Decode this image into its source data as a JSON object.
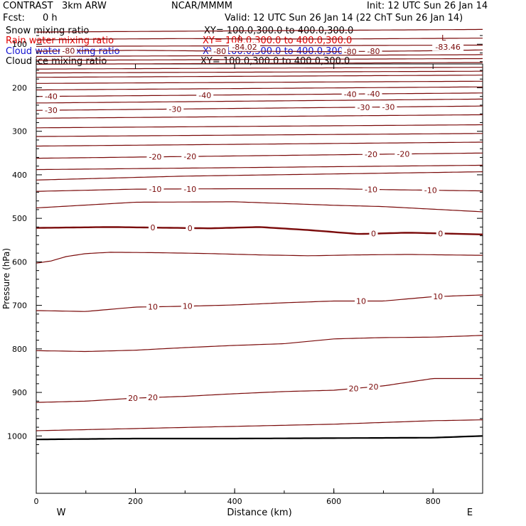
{
  "header": {
    "model": "CONTRAST   3km ARW",
    "org": "NCAR/MMMM",
    "init": "Init: 12 UTC Sun 26 Jan 14",
    "fcst_label": "Fcst:",
    "fcst_value": "0 h",
    "valid": "Valid: 12 UTC Sun 26 Jan 14 (22 ChT Sun 26 Jan 14)"
  },
  "fields": [
    {
      "name": "Snow mixing ratio",
      "xy": "XY= 100.0,300.0 to 400.0,300.0",
      "color": "#000000"
    },
    {
      "name": "Rain water mixing ratio",
      "xy": "XY= 100.0,300.0 to 400.0,300.0",
      "color": "#e00000"
    },
    {
      "name": "Cloud water mixing ratio",
      "xy": "XY= 100.0,300.0 to 400.0,300.0",
      "color": "#1010d0"
    },
    {
      "name": "Cloud ice mixing ratio",
      "xy": "XY= 100.0,300.0 to 400.0,300.0",
      "color": "#000000"
    }
  ],
  "chart_data": {
    "type": "line",
    "title": "",
    "xlabel": "Distance (km)",
    "ylabel": "Pressure (hPa)",
    "xlim": [
      0,
      900
    ],
    "ylim": [
      1050,
      70
    ],
    "x_ticks": [
      0,
      200,
      400,
      600,
      800
    ],
    "y_ticks": [
      100,
      200,
      300,
      400,
      500,
      600,
      700,
      800,
      900,
      1000
    ],
    "direction_labels": {
      "left": "W",
      "right": "E"
    },
    "contour_color": "#7a0a0a",
    "ground_line_color": "#000000",
    "minima": [
      {
        "marker": "L",
        "label": "-84.02",
        "x": 420,
        "p": 96
      },
      {
        "marker": "L",
        "label": "-83.46",
        "x": 830,
        "p": 96
      }
    ],
    "series": [
      {
        "x": [
          0,
          900
        ],
        "y": [
          72,
          66
        ]
      },
      {
        "x": [
          0,
          150,
          300,
          450,
          600,
          750,
          900
        ],
        "y": [
          90,
          88,
          87,
          88,
          88,
          87,
          86
        ]
      },
      {
        "x": [
          0,
          900
        ],
        "y": [
          105,
          102
        ]
      },
      {
        "x": [
          0,
          200,
          400,
          600,
          800,
          900
        ],
        "y": [
          116,
          114,
          116,
          117,
          115,
          113
        ],
        "labels": [
          {
            "text": "-80",
            "x": 65
          },
          {
            "text": "-80",
            "x": 370
          },
          {
            "text": "-80",
            "x": 633
          },
          {
            "text": "-80",
            "x": 680
          }
        ]
      },
      {
        "x": [
          0,
          900
        ],
        "y": [
          128,
          124
        ]
      },
      {
        "x": [
          0,
          900
        ],
        "y": [
          137,
          133
        ]
      },
      {
        "x": [
          0,
          900
        ],
        "y": [
          146,
          142
        ]
      },
      {
        "x": [
          0,
          900
        ],
        "y": [
          157,
          153
        ]
      },
      {
        "x": [
          0,
          900
        ],
        "y": [
          166,
          162
        ]
      },
      {
        "x": [
          0,
          900
        ],
        "y": [
          176,
          171
        ]
      },
      {
        "x": [
          0,
          900
        ],
        "y": [
          190,
          185
        ]
      },
      {
        "x": [
          0,
          900
        ],
        "y": [
          205,
          198
        ]
      },
      {
        "x": [
          0,
          900
        ],
        "y": [
          220,
          212
        ],
        "labels": [
          {
            "text": "-40",
            "x": 30
          },
          {
            "text": "-40",
            "x": 340
          },
          {
            "text": "-40",
            "x": 633
          },
          {
            "text": "-40",
            "x": 680
          }
        ]
      },
      {
        "x": [
          0,
          900
        ],
        "y": [
          235,
          226
        ]
      },
      {
        "x": [
          0,
          900
        ],
        "y": [
          252,
          242
        ],
        "labels": [
          {
            "text": "-30",
            "x": 30
          },
          {
            "text": "-30",
            "x": 280
          },
          {
            "text": "-30",
            "x": 660
          },
          {
            "text": "-30",
            "x": 710
          }
        ]
      },
      {
        "x": [
          0,
          900
        ],
        "y": [
          270,
          262
        ]
      },
      {
        "x": [
          0,
          900
        ],
        "y": [
          292,
          285
        ]
      },
      {
        "x": [
          0,
          900
        ],
        "y": [
          312,
          305
        ]
      },
      {
        "x": [
          0,
          900
        ],
        "y": [
          334,
          325
        ]
      },
      {
        "x": [
          0,
          900
        ],
        "y": [
          362,
          350
        ],
        "labels": [
          {
            "text": "-20",
            "x": 240
          },
          {
            "text": "-20",
            "x": 310
          },
          {
            "text": "-20",
            "x": 675
          },
          {
            "text": "-20",
            "x": 740
          }
        ]
      },
      {
        "x": [
          0,
          900
        ],
        "y": [
          388,
          378
        ]
      },
      {
        "x": [
          0,
          300,
          600,
          900
        ],
        "y": [
          412,
          403,
          398,
          393
        ]
      },
      {
        "x": [
          0,
          200,
          400,
          600,
          700,
          900
        ],
        "y": [
          438,
          433,
          432,
          432,
          434,
          437
        ],
        "labels": [
          {
            "text": "-10",
            "x": 240
          },
          {
            "text": "-10",
            "x": 310
          },
          {
            "text": "-10",
            "x": 675
          },
          {
            "text": "-10",
            "x": 795
          }
        ]
      },
      {
        "x": [
          0,
          200,
          400,
          600,
          700,
          900
        ],
        "y": [
          476,
          463,
          462,
          470,
          473,
          485
        ]
      },
      {
        "x": [
          0,
          150,
          350,
          450,
          550,
          650,
          750,
          900
        ],
        "y": [
          522,
          520,
          523,
          520,
          527,
          536,
          533,
          537
        ],
        "labels": [
          {
            "text": "0",
            "x": 235
          },
          {
            "text": "0",
            "x": 310
          },
          {
            "text": "0",
            "x": 680
          },
          {
            "text": "0",
            "x": 815
          }
        ],
        "bold": true
      },
      {
        "x": [
          0,
          30,
          60,
          100,
          150,
          250,
          350,
          450,
          550,
          650,
          750,
          900
        ],
        "y": [
          603,
          598,
          588,
          581,
          578,
          579,
          581,
          584,
          586,
          584,
          583,
          585
        ]
      },
      {
        "x": [
          0,
          100,
          200,
          300,
          400,
          500,
          600,
          700,
          800,
          900
        ],
        "y": [
          712,
          714,
          704,
          702,
          699,
          694,
          690,
          690,
          680,
          676
        ],
        "labels": [
          {
            "text": "10",
            "x": 235
          },
          {
            "text": "10",
            "x": 305
          },
          {
            "text": "10",
            "x": 655
          },
          {
            "text": "10",
            "x": 810
          }
        ]
      },
      {
        "x": [
          0,
          100,
          200,
          300,
          400,
          500,
          600,
          700,
          800,
          900
        ],
        "y": [
          804,
          806,
          803,
          797,
          792,
          788,
          777,
          774,
          773,
          769
        ]
      },
      {
        "x": [
          0,
          100,
          200,
          300,
          400,
          500,
          600,
          700,
          800,
          900
        ],
        "y": [
          923,
          920,
          913,
          909,
          903,
          898,
          895,
          885,
          868,
          868
        ],
        "labels": [
          {
            "text": "20",
            "x": 195
          },
          {
            "text": "20",
            "x": 235
          },
          {
            "text": "20",
            "x": 640
          },
          {
            "text": "20",
            "x": 680
          }
        ]
      },
      {
        "x": [
          0,
          200,
          400,
          600,
          800,
          900
        ],
        "y": [
          988,
          983,
          978,
          973,
          965,
          963
        ]
      },
      {
        "x": [
          0,
          200,
          400,
          600,
          800,
          900
        ],
        "y": [
          1008,
          1006,
          1006,
          1005,
          1004,
          1000
        ],
        "ground": true
      }
    ]
  }
}
